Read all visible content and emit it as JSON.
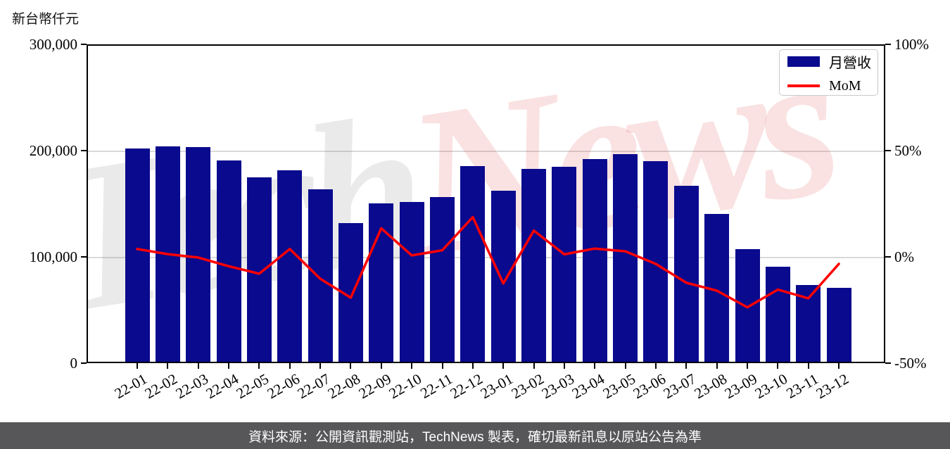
{
  "title": "新台幣仟元",
  "watermark": {
    "text_gray": "Tech",
    "text_pink": "News"
  },
  "legend": {
    "items": [
      {
        "label": "月營收",
        "type": "bar",
        "color": "#0a0a8e"
      },
      {
        "label": "MoM",
        "type": "line",
        "color": "#ff0000"
      }
    ]
  },
  "footer": {
    "text": "資料來源：公開資訊觀測站，TechNews 製表，確切最新訊息以原站公告為準",
    "bg": "#57575a"
  },
  "colors": {
    "bar": "#0a0a8e",
    "line": "#ff0000",
    "grid": "#d9d9d9",
    "axis": "#000000"
  },
  "chart_data": {
    "type": "bar",
    "title": "新台幣仟元",
    "categories": [
      "22-01",
      "22-02",
      "22-03",
      "22-04",
      "22-05",
      "22-06",
      "22-07",
      "22-08",
      "22-09",
      "22-10",
      "22-11",
      "22-12",
      "23-01",
      "23-02",
      "23-03",
      "23-04",
      "23-05",
      "23-06",
      "23-07",
      "23-08",
      "23-09",
      "23-10",
      "23-11",
      "23-12"
    ],
    "series": [
      {
        "name": "月營收",
        "type": "bar",
        "axis": "left",
        "color": "#0a0a8e",
        "unit": "新台幣仟元",
        "values": [
          202200,
          204300,
          203500,
          191000,
          174900,
          181500,
          163500,
          132000,
          150300,
          151400,
          156200,
          185500,
          162400,
          182800,
          184800,
          192100,
          196500,
          189800,
          166900,
          140400,
          107500,
          90900,
          73300,
          70700
        ]
      },
      {
        "name": "MoM",
        "type": "line",
        "axis": "right",
        "color": "#ff0000",
        "unit": "%",
        "values": [
          3.7,
          1.3,
          -0.3,
          -4.4,
          -7.9,
          3.7,
          -10.3,
          -19.2,
          13.4,
          0.7,
          3.1,
          18.7,
          -12.5,
          12.4,
          1.2,
          3.9,
          2.6,
          -3.3,
          -12.2,
          -15.9,
          -23.7,
          -15.4,
          -19.5,
          -3.3
        ]
      }
    ],
    "ylim_left": [
      0,
      300000
    ],
    "ylim_right": [
      -50,
      100
    ],
    "left_ticks": [
      {
        "label": "300,000",
        "value": 300000
      },
      {
        "label": "200,000",
        "value": 200000
      },
      {
        "label": "100,000",
        "value": 100000
      },
      {
        "label": "0",
        "value": 0
      }
    ],
    "right_ticks": [
      {
        "label": "100%",
        "value": 100
      },
      {
        "label": "50%",
        "value": 50
      },
      {
        "label": "0%",
        "value": 0
      },
      {
        "label": "-50%",
        "value": -50
      }
    ],
    "grid": "horizontal gridlines at left-axis 100,000 and 200,000",
    "legend_position": "upper right"
  }
}
